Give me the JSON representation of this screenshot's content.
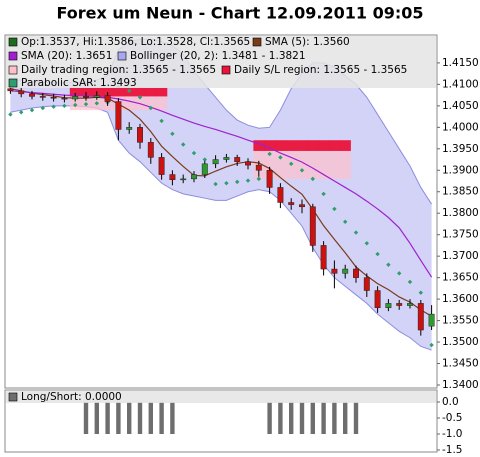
{
  "chart_data": [
    {
      "type": "candlestick",
      "title": "Forex um Neun - Chart 12.09.2011 09:05",
      "ylim": [
        1.3393,
        1.4215
      ],
      "yticks": [
        {
          "value": 1.34,
          "label": "1.3400"
        },
        {
          "value": 1.345,
          "label": "1.3450"
        },
        {
          "value": 1.35,
          "label": "1.3500"
        },
        {
          "value": 1.355,
          "label": "1.3550"
        },
        {
          "value": 1.36,
          "label": "1.3600"
        },
        {
          "value": 1.365,
          "label": "1.3650"
        },
        {
          "value": 1.37,
          "label": "1.3700"
        },
        {
          "value": 1.375,
          "label": "1.3750"
        },
        {
          "value": 1.38,
          "label": "1.3800"
        },
        {
          "value": 1.385,
          "label": "1.3850"
        },
        {
          "value": 1.39,
          "label": "1.3900"
        },
        {
          "value": 1.395,
          "label": "1.3950"
        },
        {
          "value": 1.4,
          "label": "1.4000"
        },
        {
          "value": 1.405,
          "label": "1.4050"
        },
        {
          "value": 1.41,
          "label": "1.4100"
        },
        {
          "value": 1.415,
          "label": "1.4150"
        }
      ],
      "grid": false,
      "ohlc": {
        "name": "Op:1.3537, Hi:1.3586, Lo:1.3528, Cl:1.3565",
        "color": "#1f6b1f",
        "up_color": "#2e9b2e",
        "down_color": "#cc1111",
        "open": [
          1.409,
          1.4085,
          1.4078,
          1.4072,
          1.407,
          1.4068,
          1.4066,
          1.4072,
          1.407,
          1.4074,
          1.406,
          1.3995,
          1.4,
          1.3965,
          1.393,
          1.389,
          1.3878,
          1.388,
          1.389,
          1.3915,
          1.3925,
          1.393,
          1.392,
          1.3912,
          1.39,
          1.386,
          1.3825,
          1.382,
          1.3815,
          1.3725,
          1.367,
          1.366,
          1.367,
          1.365,
          1.362,
          1.358,
          1.359,
          1.3585,
          1.359,
          1.3537
        ],
        "high": [
          1.4098,
          1.4092,
          1.4085,
          1.408,
          1.4078,
          1.4076,
          1.408,
          1.4082,
          1.4084,
          1.4082,
          1.4068,
          1.4012,
          1.4008,
          1.3975,
          1.394,
          1.39,
          1.389,
          1.3898,
          1.3922,
          1.3935,
          1.3938,
          1.3936,
          1.3928,
          1.3922,
          1.3908,
          1.387,
          1.3835,
          1.3832,
          1.3822,
          1.3735,
          1.369,
          1.368,
          1.3678,
          1.366,
          1.363,
          1.36,
          1.3598,
          1.36,
          1.3598,
          1.3586
        ],
        "low": [
          1.4078,
          1.407,
          1.4065,
          1.4062,
          1.406,
          1.4058,
          1.406,
          1.4062,
          1.4064,
          1.405,
          1.397,
          1.3985,
          1.395,
          1.3915,
          1.3878,
          1.3865,
          1.387,
          1.3872,
          1.3882,
          1.3905,
          1.3918,
          1.391,
          1.3902,
          1.3885,
          1.3845,
          1.3812,
          1.3808,
          1.38,
          1.371,
          1.3655,
          1.3625,
          1.3648,
          1.3638,
          1.3605,
          1.3568,
          1.3572,
          1.3575,
          1.3578,
          1.3515,
          1.3528
        ],
        "close": [
          1.4085,
          1.4078,
          1.4072,
          1.407,
          1.4068,
          1.4066,
          1.4072,
          1.407,
          1.4074,
          1.406,
          1.3995,
          1.4,
          1.3965,
          1.393,
          1.389,
          1.3878,
          1.388,
          1.389,
          1.3915,
          1.3925,
          1.393,
          1.392,
          1.3912,
          1.39,
          1.386,
          1.3825,
          1.382,
          1.3815,
          1.3725,
          1.367,
          1.366,
          1.367,
          1.365,
          1.362,
          1.358,
          1.359,
          1.3585,
          1.359,
          1.3528,
          1.3565
        ]
      },
      "series": [
        {
          "name": "SMA (5): 1.3560",
          "color": "#7a3b1a",
          "values": [
            1.409,
            1.4085,
            1.408,
            1.4076,
            1.4073,
            1.4069,
            1.4068,
            1.4068,
            1.407,
            1.4068,
            1.4054,
            1.404,
            1.4019,
            1.399,
            1.3956,
            1.3932,
            1.3909,
            1.3888,
            1.3887,
            1.3898,
            1.3908,
            1.3916,
            1.392,
            1.3917,
            1.3904,
            1.3883,
            1.3863,
            1.3844,
            1.3809,
            1.3771,
            1.3739,
            1.3708,
            1.3675,
            1.3654,
            1.3636,
            1.3622,
            1.3605,
            1.3593,
            1.3575,
            1.356
          ]
        },
        {
          "name": "SMA (20): 1.3651",
          "color": "#a020d0",
          "values": [
            1.4085,
            1.4083,
            1.4081,
            1.4079,
            1.4077,
            1.4075,
            1.4074,
            1.4073,
            1.4072,
            1.407,
            1.4066,
            1.4061,
            1.4055,
            1.4047,
            1.4038,
            1.4028,
            1.4019,
            1.401,
            1.4002,
            1.3995,
            1.3987,
            1.3979,
            1.397,
            1.3962,
            1.3952,
            1.394,
            1.393,
            1.3919,
            1.3905,
            1.389,
            1.3875,
            1.386,
            1.3845,
            1.3828,
            1.381,
            1.379,
            1.3766,
            1.373,
            1.369,
            1.3651
          ]
        }
      ],
      "bollinger": {
        "name": "Bollinger (20, 2): 1.3481 - 1.3821",
        "color": "#a8a8f0",
        "upper": [
          1.411,
          1.411,
          1.4108,
          1.4105,
          1.4104,
          1.4104,
          1.4104,
          1.4106,
          1.411,
          1.412,
          1.418,
          1.42,
          1.4205,
          1.4205,
          1.42,
          1.419,
          1.417,
          1.413,
          1.41,
          1.407,
          1.404,
          1.4017,
          1.4005,
          1.3998,
          1.4,
          1.404,
          1.409,
          1.4125,
          1.415,
          1.415,
          1.414,
          1.412,
          1.41,
          1.407,
          1.403,
          1.399,
          1.395,
          1.391,
          1.386,
          1.3821
        ],
        "lower": [
          1.4035,
          1.404,
          1.4045,
          1.4048,
          1.405,
          1.405,
          1.405,
          1.4048,
          1.4045,
          1.4035,
          1.397,
          1.394,
          1.392,
          1.3895,
          1.387,
          1.3855,
          1.3845,
          1.384,
          1.3835,
          1.383,
          1.383,
          1.384,
          1.385,
          1.3855,
          1.385,
          1.383,
          1.38,
          1.377,
          1.372,
          1.368,
          1.365,
          1.363,
          1.361,
          1.359,
          1.3565,
          1.3545,
          1.3525,
          1.351,
          1.349,
          1.3481
        ]
      },
      "trading_region": {
        "name": "Daily trading region: 1.3565 - 1.3565",
        "color": "#ffc0cc",
        "high": [
          null,
          null,
          null,
          null,
          null,
          null,
          1.4092,
          1.4092,
          1.4092,
          1.4092,
          1.4092,
          1.4092,
          1.4092,
          1.4092,
          1.4092,
          null,
          null,
          null,
          null,
          null,
          null,
          null,
          null,
          1.397,
          1.397,
          1.397,
          1.397,
          1.397,
          1.397,
          1.397,
          1.397,
          1.397,
          null,
          null,
          null,
          null,
          null,
          null,
          null,
          null
        ],
        "low": [
          null,
          null,
          null,
          null,
          null,
          null,
          1.404,
          1.404,
          1.404,
          1.404,
          1.404,
          1.404,
          1.404,
          1.404,
          1.404,
          null,
          null,
          null,
          null,
          null,
          null,
          null,
          null,
          1.388,
          1.388,
          1.388,
          1.388,
          1.388,
          1.388,
          1.388,
          1.388,
          1.388,
          null,
          null,
          null,
          null,
          null,
          null,
          null,
          null
        ]
      },
      "sl_region": {
        "name": "Daily S/L region: 1.3565 - 1.3565",
        "color": "#e8143c",
        "high": [
          null,
          null,
          null,
          null,
          null,
          null,
          1.4092,
          1.4092,
          1.4092,
          1.4092,
          1.4092,
          1.4092,
          1.4092,
          1.4092,
          1.4092,
          null,
          null,
          null,
          null,
          null,
          null,
          null,
          null,
          1.397,
          1.397,
          1.397,
          1.397,
          1.397,
          1.397,
          1.397,
          1.397,
          1.397,
          null,
          null,
          null,
          null,
          null,
          null,
          null,
          null
        ],
        "low": [
          null,
          null,
          null,
          null,
          null,
          null,
          1.4072,
          1.4072,
          1.4072,
          1.4072,
          1.4072,
          1.4072,
          1.4072,
          1.4072,
          1.4072,
          null,
          null,
          null,
          null,
          null,
          null,
          null,
          null,
          1.3945,
          1.3945,
          1.3945,
          1.3945,
          1.3945,
          1.3945,
          1.3945,
          1.3945,
          1.3945,
          null,
          null,
          null,
          null,
          null,
          null,
          null,
          null
        ]
      },
      "sar": {
        "name": "Parabolic SAR: 1.3493",
        "color": "#2e9e6e",
        "values": [
          1.403,
          1.4035,
          1.404,
          1.4045,
          1.4048,
          1.405,
          1.4052,
          1.4054,
          1.4056,
          1.4058,
          1.4095,
          1.4085,
          1.407,
          1.4045,
          1.4015,
          1.3985,
          1.396,
          1.394,
          1.3925,
          1.3868,
          1.387,
          1.3873,
          1.3876,
          1.388,
          1.3938,
          1.393,
          1.3915,
          1.39,
          1.388,
          1.3845,
          1.381,
          1.378,
          1.3755,
          1.373,
          1.3705,
          1.368,
          1.366,
          1.364,
          1.3615,
          1.3493
        ]
      }
    },
    {
      "type": "bar",
      "name": "Long/Short: 0.0000",
      "color": "#6e6e6e",
      "values": [
        0,
        0,
        0,
        0,
        0,
        0,
        0,
        -1,
        -1,
        -1,
        -1,
        -1,
        -1,
        -1,
        -1,
        -1,
        0,
        0,
        0,
        0,
        0,
        0,
        0,
        0,
        -1,
        -1,
        -1,
        -1,
        -1,
        -1,
        -1,
        -1,
        -1,
        0,
        0,
        0,
        0,
        0,
        0,
        0
      ],
      "ylim": [
        -1.5625,
        0.375
      ],
      "yticks": [
        {
          "value": 0,
          "label": "0.0"
        },
        {
          "value": -0.5,
          "label": "-0.5"
        },
        {
          "value": -1,
          "label": "-1.0"
        },
        {
          "value": -1.5,
          "label": "-1.5"
        }
      ]
    }
  ]
}
